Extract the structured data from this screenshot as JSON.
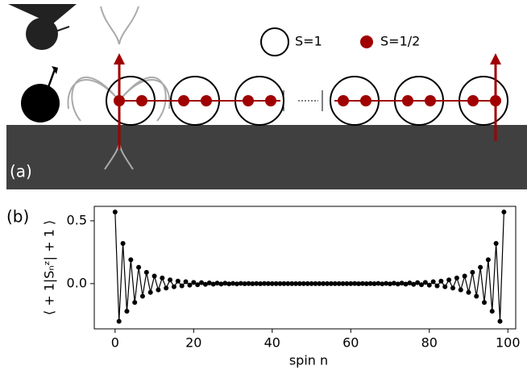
{
  "panel_a": {
    "label": "(a)",
    "legend": [
      "S=1",
      "S=1/2"
    ]
  },
  "panel_b_label": "(b)",
  "chart_data": {
    "type": "line",
    "x_label": "spin n",
    "y_label": "⟨ + 1|Sₙᶻ| + 1 ⟩",
    "x": [
      0,
      1,
      2,
      3,
      4,
      5,
      6,
      7,
      8,
      9,
      10,
      11,
      12,
      13,
      14,
      15,
      16,
      17,
      18,
      19,
      20,
      21,
      22,
      23,
      24,
      25,
      26,
      27,
      28,
      29,
      30,
      31,
      32,
      33,
      34,
      35,
      36,
      37,
      38,
      39,
      40,
      41,
      42,
      43,
      44,
      45,
      46,
      47,
      48,
      49,
      50,
      51,
      52,
      53,
      54,
      55,
      56,
      57,
      58,
      59,
      60,
      61,
      62,
      63,
      64,
      65,
      66,
      67,
      68,
      69,
      70,
      71,
      72,
      73,
      74,
      75,
      76,
      77,
      78,
      79,
      80,
      81,
      82,
      83,
      84,
      85,
      86,
      87,
      88,
      89,
      90,
      91,
      92,
      93,
      94,
      95,
      96,
      97,
      98,
      99
    ],
    "series": [
      {
        "color": "#000000",
        "values": [
          0.57,
          -0.3,
          0.32,
          -0.22,
          0.19,
          -0.15,
          0.13,
          -0.1,
          0.09,
          -0.07,
          0.06,
          -0.05,
          0.045,
          -0.035,
          0.03,
          -0.025,
          0.02,
          -0.018,
          0.015,
          -0.012,
          0.01,
          -0.009,
          0.008,
          -0.006,
          0.006,
          -0.004,
          0.004,
          -0.003,
          0.003,
          -0.002,
          0.002,
          -0.002,
          0.002,
          -0.001,
          0.001,
          -0.001,
          0.001,
          -0.001,
          0.001,
          0,
          0,
          0,
          0,
          0,
          0,
          0,
          0,
          0,
          0,
          0,
          0,
          0,
          0,
          0,
          0,
          0,
          0,
          0,
          0,
          0,
          0,
          0.001,
          -0.001,
          0.001,
          -0.001,
          0.001,
          -0.001,
          0.002,
          -0.002,
          0.002,
          -0.002,
          0.003,
          -0.003,
          0.004,
          -0.004,
          0.006,
          -0.006,
          0.008,
          -0.009,
          0.01,
          -0.012,
          0.015,
          -0.018,
          0.02,
          -0.025,
          0.03,
          -0.035,
          0.045,
          -0.05,
          0.06,
          -0.07,
          0.09,
          -0.1,
          0.13,
          -0.15,
          0.19,
          -0.22,
          0.32,
          -0.3,
          0.57
        ]
      }
    ],
    "xlim": [
      -5.3,
      102
    ],
    "xticks": [
      0,
      20,
      40,
      60,
      80,
      100
    ],
    "ylim": [
      -0.36,
      0.615
    ],
    "yticks": [
      {
        "value": 0,
        "label": "0.0"
      },
      0.5
    ],
    "grid": false
  }
}
